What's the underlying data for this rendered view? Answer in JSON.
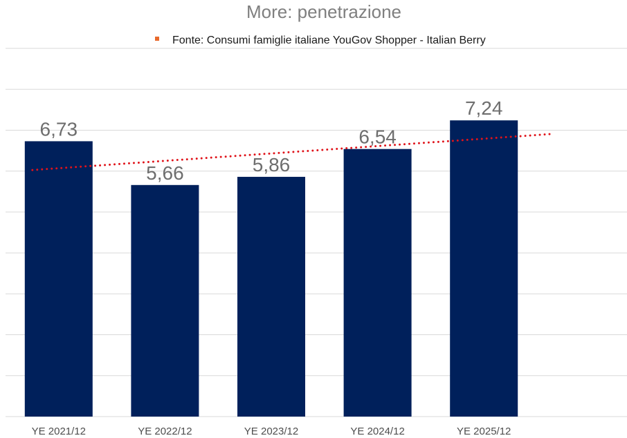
{
  "chart_data": {
    "type": "bar",
    "title": "More: penetrazione",
    "categories": [
      "YE 2021/12",
      "YE 2022/12",
      "YE 2023/12",
      "YE 2024/12",
      "YE 2025/12"
    ],
    "values": [
      6.73,
      5.66,
      5.86,
      6.54,
      7.24
    ],
    "value_labels": [
      "6,73",
      "5,66",
      "5,86",
      "6,54",
      "7,24"
    ],
    "ylim": [
      0,
      9
    ],
    "ytick_step": 1,
    "grid": true,
    "y_axis_labels_shown": false,
    "legend": {
      "position": "top",
      "entries": [
        {
          "label": "Fonte: Consumi famiglie italiane YouGov Shopper - Italian Berry",
          "marker": "square",
          "color": "#e8692c"
        }
      ]
    },
    "trendline": {
      "type": "linear",
      "style": "dotted",
      "color": "#e0131a",
      "forward_extension_periods": 0.65
    }
  },
  "colors": {
    "bar": "#00205b",
    "gridline": "#d9d9d9",
    "title": "#7f7f7f",
    "data_label": "#6e6e6e",
    "tick_label": "#4d4d4d",
    "legend_marker": "#e8692c",
    "trendline": "#e0131a"
  }
}
